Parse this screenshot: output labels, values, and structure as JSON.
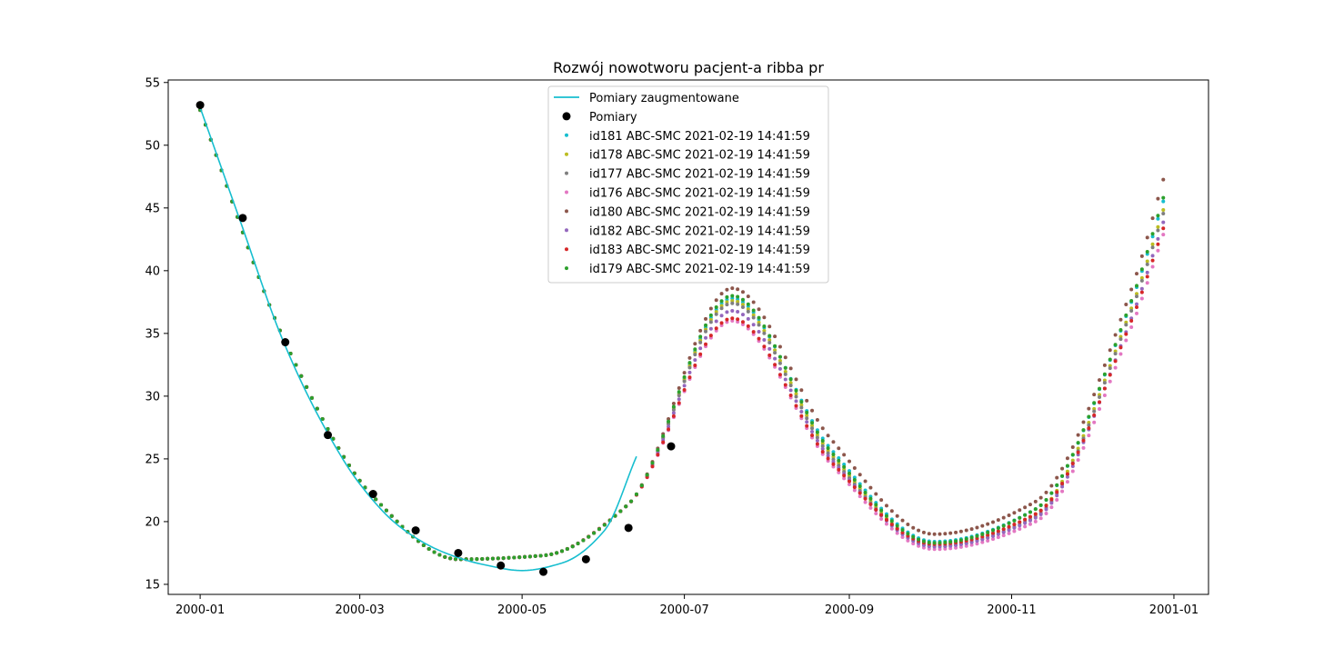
{
  "chart_data": {
    "type": "scatter",
    "title": "Rozwój nowotworu pacjent-a ribba pr",
    "xlabel": "",
    "ylabel": "",
    "x_axis_type": "date",
    "xlim": [
      "1999-12-20",
      "2001-01-14"
    ],
    "ylim": [
      14.2,
      55.2
    ],
    "x_ticks": [
      "2000-01",
      "2000-03",
      "2000-05",
      "2000-07",
      "2000-09",
      "2000-11",
      "2001-01"
    ],
    "y_ticks": [
      15,
      20,
      25,
      30,
      35,
      40,
      45,
      50,
      55
    ],
    "grid": false,
    "legend_position": "upper center",
    "series": [
      {
        "name": "Pomiary zaugmentowane",
        "kind": "line",
        "color": "#17becf",
        "x": [
          "2000-01-01",
          "2000-01-16",
          "2000-02-01",
          "2000-02-16",
          "2000-03-01",
          "2000-03-16",
          "2000-04-01",
          "2000-04-16",
          "2000-05-01",
          "2000-05-16",
          "2000-06-01",
          "2000-06-13"
        ],
        "y": [
          53.0,
          44.0,
          34.5,
          27.8,
          23.0,
          19.6,
          17.6,
          16.6,
          16.1,
          16.7,
          19.3,
          25.2
        ]
      },
      {
        "name": "Pomiary",
        "kind": "points",
        "color": "#000000",
        "x": [
          "2000-01-01",
          "2000-01-17",
          "2000-02-02",
          "2000-02-18",
          "2000-03-06",
          "2000-03-22",
          "2000-04-07",
          "2000-04-23",
          "2000-05-09",
          "2000-05-25",
          "2000-06-10",
          "2000-06-26"
        ],
        "y": [
          53.2,
          44.2,
          34.3,
          26.9,
          22.2,
          19.3,
          17.5,
          16.5,
          16.0,
          17.0,
          19.5,
          26.0
        ]
      },
      {
        "name": "id181 ABC-SMC 2021-02-19 14:41:59",
        "kind": "sim",
        "color": "#17becf",
        "x": [
          "2000-01-01",
          "2000-02-02",
          "2000-03-06",
          "2000-04-07",
          "2000-05-09",
          "2000-06-10",
          "2000-07-19",
          "2000-08-25",
          "2000-10-03",
          "2000-11-10",
          "2000-12-16",
          "2000-12-29"
        ],
        "y": [
          52.8,
          34.3,
          22.0,
          17.0,
          17.3,
          21.4,
          37.8,
          25.8,
          18.4,
          21.0,
          37.5,
          46.2
        ]
      },
      {
        "name": "id178 ABC-SMC 2021-02-19 14:41:59",
        "kind": "sim",
        "color": "#bcbd22",
        "x": [
          "2000-01-01",
          "2000-02-02",
          "2000-03-06",
          "2000-04-07",
          "2000-05-09",
          "2000-06-10",
          "2000-07-19",
          "2000-08-25",
          "2000-10-03",
          "2000-11-10",
          "2000-12-16",
          "2000-12-29"
        ],
        "y": [
          52.8,
          34.3,
          22.0,
          17.0,
          17.3,
          21.4,
          37.6,
          25.4,
          18.1,
          20.6,
          37.0,
          45.5
        ]
      },
      {
        "name": "id177 ABC-SMC 2021-02-19 14:41:59",
        "kind": "sim",
        "color": "#7f7f7f",
        "x": [
          "2000-01-01",
          "2000-02-02",
          "2000-03-06",
          "2000-04-07",
          "2000-05-09",
          "2000-06-10",
          "2000-07-19",
          "2000-08-25",
          "2000-10-03",
          "2000-11-10",
          "2000-12-16",
          "2000-12-29"
        ],
        "y": [
          52.8,
          34.3,
          22.0,
          17.0,
          17.3,
          21.4,
          37.4,
          25.2,
          18.0,
          20.4,
          36.8,
          45.2
        ]
      },
      {
        "name": "id176 ABC-SMC 2021-02-19 14:41:59",
        "kind": "sim",
        "color": "#e377c2",
        "x": [
          "2000-01-01",
          "2000-02-02",
          "2000-03-06",
          "2000-04-07",
          "2000-05-09",
          "2000-06-10",
          "2000-07-19",
          "2000-08-25",
          "2000-10-03",
          "2000-11-10",
          "2000-12-16",
          "2000-12-29"
        ],
        "y": [
          52.8,
          34.3,
          22.0,
          17.0,
          17.3,
          21.4,
          36.0,
          24.6,
          17.8,
          20.0,
          35.5,
          43.5
        ]
      },
      {
        "name": "id180 ABC-SMC 2021-02-19 14:41:59",
        "kind": "sim",
        "color": "#8c564b",
        "x": [
          "2000-01-01",
          "2000-02-02",
          "2000-03-06",
          "2000-04-07",
          "2000-05-09",
          "2000-06-10",
          "2000-07-19",
          "2000-08-25",
          "2000-10-03",
          "2000-11-10",
          "2000-12-16",
          "2000-12-29"
        ],
        "y": [
          52.8,
          34.3,
          22.0,
          17.0,
          17.3,
          21.4,
          38.6,
          26.6,
          19.0,
          21.6,
          38.5,
          48.0
        ]
      },
      {
        "name": "id182 ABC-SMC 2021-02-19 14:41:59",
        "kind": "sim",
        "color": "#9467bd",
        "x": [
          "2000-01-01",
          "2000-02-02",
          "2000-03-06",
          "2000-04-07",
          "2000-05-09",
          "2000-06-10",
          "2000-07-19",
          "2000-08-25",
          "2000-10-03",
          "2000-11-10",
          "2000-12-16",
          "2000-12-29"
        ],
        "y": [
          52.8,
          34.3,
          22.0,
          17.0,
          17.3,
          21.4,
          36.8,
          25.0,
          18.0,
          20.3,
          36.2,
          44.5
        ]
      },
      {
        "name": "id183 ABC-SMC 2021-02-19 14:41:59",
        "kind": "sim",
        "color": "#d62728",
        "x": [
          "2000-01-01",
          "2000-02-02",
          "2000-03-06",
          "2000-04-07",
          "2000-05-09",
          "2000-06-10",
          "2000-07-19",
          "2000-08-25",
          "2000-10-03",
          "2000-11-10",
          "2000-12-16",
          "2000-12-29"
        ],
        "y": [
          52.8,
          34.3,
          22.0,
          17.0,
          17.3,
          21.4,
          36.2,
          24.8,
          18.2,
          20.6,
          36.0,
          44.0
        ]
      },
      {
        "name": "id179 ABC-SMC 2021-02-19 14:41:59",
        "kind": "sim",
        "color": "#2ca02c",
        "x": [
          "2000-01-01",
          "2000-02-02",
          "2000-03-06",
          "2000-04-07",
          "2000-05-09",
          "2000-06-10",
          "2000-07-19",
          "2000-08-25",
          "2000-10-03",
          "2000-11-10",
          "2000-12-16",
          "2000-12-29"
        ],
        "y": [
          52.8,
          34.3,
          22.0,
          17.0,
          17.3,
          21.4,
          38.0,
          25.6,
          18.3,
          21.0,
          37.6,
          46.5
        ]
      }
    ]
  }
}
